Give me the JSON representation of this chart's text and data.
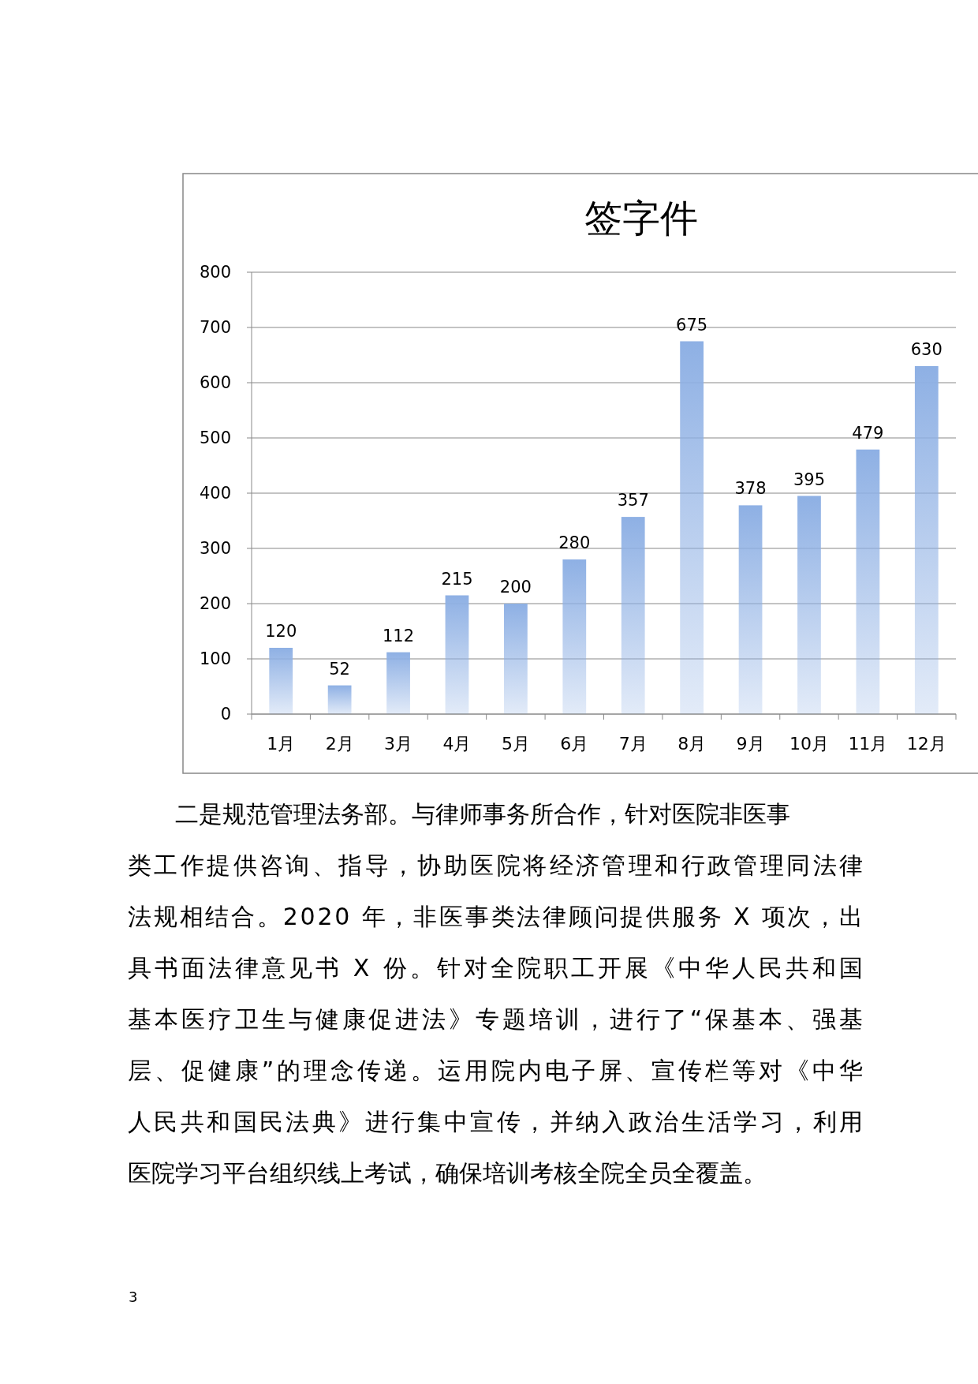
{
  "chart_data": {
    "type": "bar",
    "title": "签字件",
    "categories": [
      "1月",
      "2月",
      "3月",
      "4月",
      "5月",
      "6月",
      "7月",
      "8月",
      "9月",
      "10月",
      "11月",
      "12月"
    ],
    "values": [
      120,
      52,
      112,
      215,
      200,
      280,
      357,
      675,
      378,
      395,
      479,
      630
    ],
    "color": "#8eb0e4",
    "ylim": [
      0,
      800
    ],
    "yticks": [
      0,
      100,
      200,
      300,
      400,
      500,
      600,
      700,
      800
    ],
    "grid": "y",
    "data_labels": true,
    "annotations": [
      "二是规范管理法务部。与律师事务所合作，针对医院非医事",
      "类工作提供咨询、指导，协助医院将经济管理和行政管理同法律",
      "法规相结合。2020 年，非医事类法律顾问提供服务 X 项次，出",
      "具书面法律意见书 X 份。针对全院职工开展《中华人民共和国",
      "基本医疗卫生与健康促进法》专题培训，进行了“保基本、强基",
      "层、促健康”的理念传递。运用院内电子屏、宣传栏等对《中华",
      "人民共和国民法典》进行集中宣传，并纳入政治生活学习，利用",
      "医院学习平台组织线上考试，确保培训考核全院全员全覆盖。",
      "3"
    ]
  }
}
